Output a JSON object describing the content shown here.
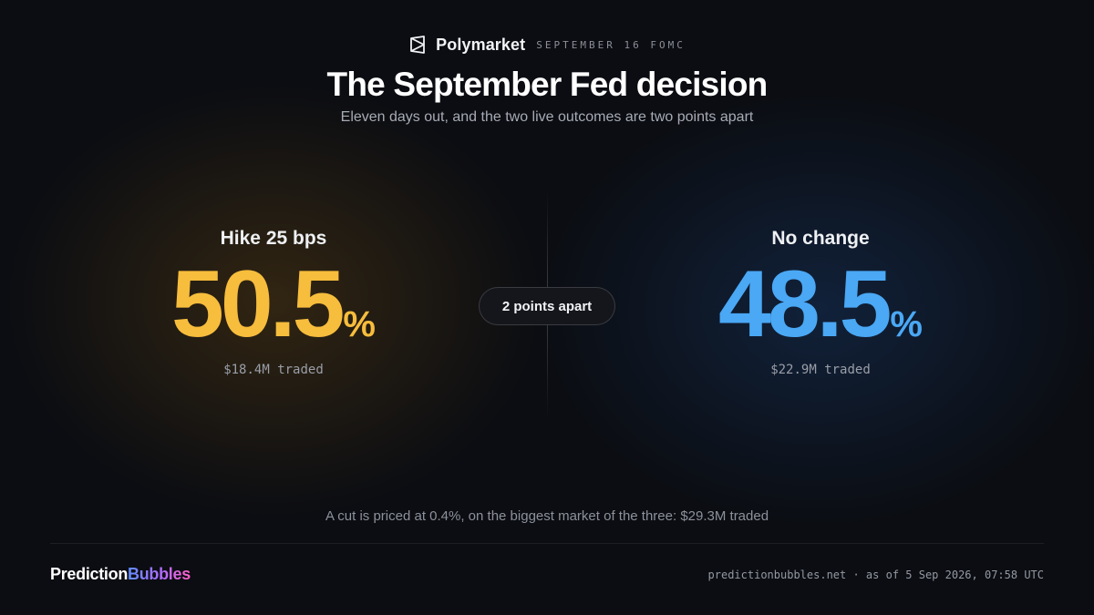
{
  "header": {
    "brand": "Polymarket",
    "event_tag": "SEPTEMBER 16 FOMC",
    "title": "The September Fed decision",
    "subtitle": "Eleven days out, and the two live outcomes are two points apart"
  },
  "outcomes": [
    {
      "label": "Hike 25 bps",
      "value": "50.5",
      "unit": "%",
      "traded": "$18.4M traded",
      "color": "#f7bd3c"
    },
    {
      "label": "No change",
      "value": "48.5",
      "unit": "%",
      "traded": "$22.9M traded",
      "color": "#4aa8f5"
    }
  ],
  "gap_label": "2 points apart",
  "footnote": "A cut is priced at 0.4%, on the biggest market of the three: $29.3M traded",
  "footer": {
    "logo_part1": "Prediction",
    "logo_part2": "Bubbles",
    "meta": "predictionbubbles.net · as of 5 Sep 2026, 07:58 UTC"
  },
  "icons": {
    "brand": "polymarket-logo-icon"
  }
}
